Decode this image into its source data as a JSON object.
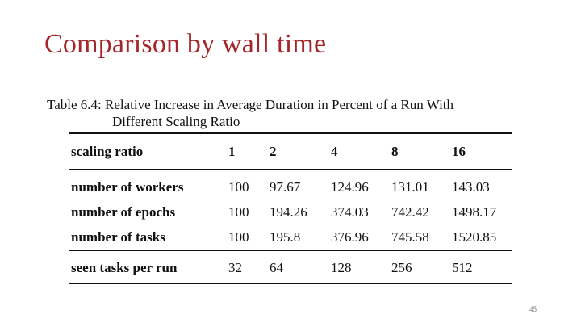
{
  "slide": {
    "title": "Comparison by wall time",
    "page_number": "45"
  },
  "table": {
    "caption_line1": "Table 6.4: Relative Increase in Average Duration in Percent of a Run With",
    "caption_line2": "Different Scaling Ratio",
    "header": [
      "scaling ratio",
      "1",
      "2",
      "4",
      "8",
      "16"
    ],
    "rows": [
      [
        "number of workers",
        "100",
        "97.67",
        "124.96",
        "131.01",
        "143.03"
      ],
      [
        "number of epochs",
        "100",
        "194.26",
        "374.03",
        "742.42",
        "1498.17"
      ],
      [
        "number of tasks",
        "100",
        "195.8",
        "376.96",
        "745.58",
        "1520.85"
      ]
    ],
    "footer_row": [
      "seen tasks per run",
      "32",
      "64",
      "128",
      "256",
      "512"
    ]
  }
}
